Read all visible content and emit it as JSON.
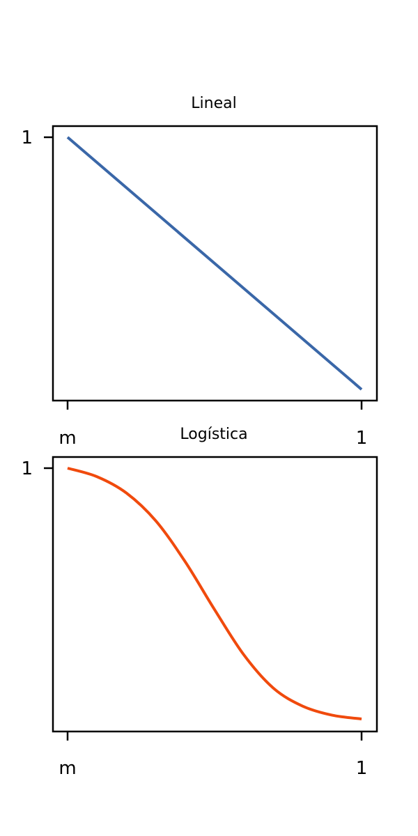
{
  "chart_data": [
    {
      "type": "line",
      "title": "Lineal",
      "xlabel": "",
      "ylabel": "",
      "xlim": [
        0,
        1
      ],
      "ylim": [
        0,
        1
      ],
      "xticks": [
        "m",
        "1"
      ],
      "yticks": [
        "1"
      ],
      "series": [
        {
          "color": "#3a67a8",
          "x": [
            0,
            1
          ],
          "y": [
            1,
            0
          ]
        }
      ]
    },
    {
      "type": "line",
      "title": "Logística",
      "xlabel": "",
      "ylabel": "",
      "xlim": [
        0,
        1
      ],
      "ylim": [
        0,
        1
      ],
      "xticks": [
        "m",
        "1"
      ],
      "yticks": [
        "1"
      ],
      "series": [
        {
          "color": "#f04a0d",
          "x": [
            0,
            0.1,
            0.2,
            0.3,
            0.4,
            0.5,
            0.6,
            0.7,
            0.8,
            0.9,
            1.0
          ],
          "y": [
            1.0,
            0.966,
            0.901,
            0.79,
            0.627,
            0.436,
            0.255,
            0.123,
            0.051,
            0.015,
            0.0
          ]
        }
      ]
    }
  ]
}
